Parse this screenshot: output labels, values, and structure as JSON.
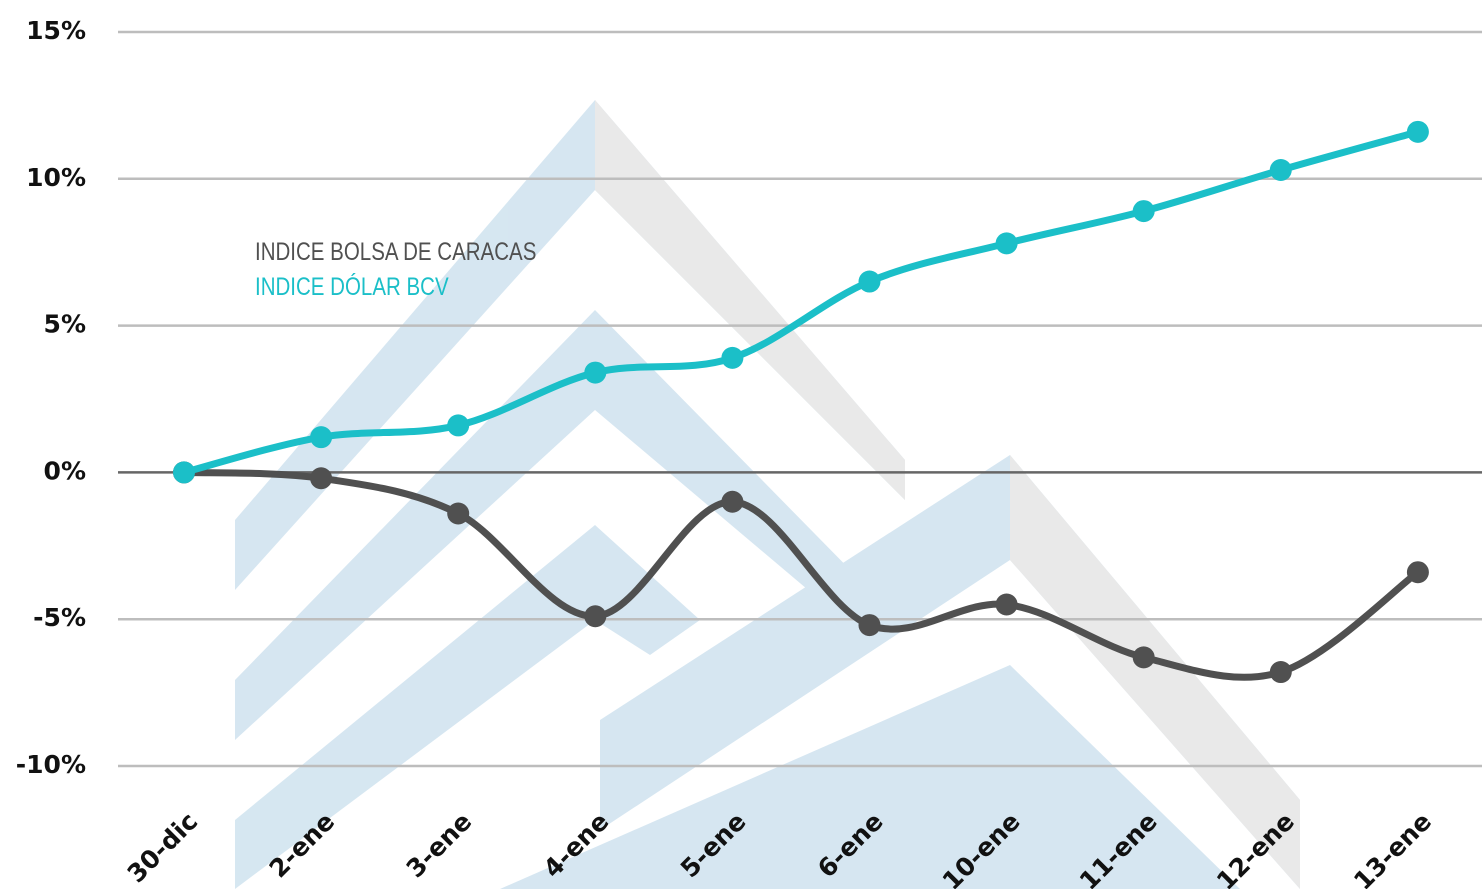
{
  "chart_data": {
    "type": "line",
    "categories": [
      "30-dic",
      "2-ene",
      "3-ene",
      "4-ene",
      "5-ene",
      "6-ene",
      "10-ene",
      "11-ene",
      "12-ene",
      "13-ene"
    ],
    "series": [
      {
        "name": "INDICE BOLSA DE CARACAS",
        "color": "#505050",
        "values": [
          0,
          -0.2,
          -1.4,
          -4.9,
          -1.0,
          -5.2,
          -4.5,
          -6.3,
          -6.8,
          -3.4
        ]
      },
      {
        "name": "INDICE DÓLAR BCV",
        "color": "#1bbfc8",
        "values": [
          0,
          1.2,
          1.6,
          3.4,
          3.9,
          6.5,
          7.8,
          8.9,
          10.3,
          11.6
        ]
      }
    ],
    "ylim": [
      -10,
      15
    ],
    "yticks": [
      {
        "value": -10,
        "label": "-10%"
      },
      {
        "value": -5,
        "label": "-5%"
      },
      {
        "value": 0,
        "label": "0%"
      },
      {
        "value": 5,
        "label": "5%"
      },
      {
        "value": 10,
        "label": "10%"
      },
      {
        "value": 15,
        "label": "15%"
      }
    ],
    "grid": true
  }
}
